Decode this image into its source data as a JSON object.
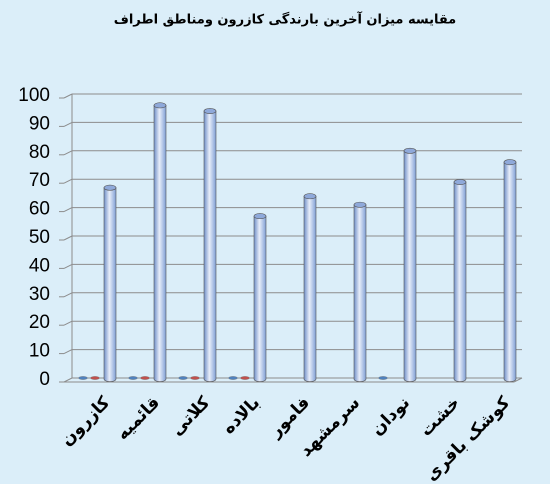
{
  "chart_data": {
    "type": "bar3d",
    "title": "مقایسه میزان آخرین بارندگی کازرون ومناطق اطراف",
    "categories": [
      "کازرون",
      "قائمیه",
      "کلاتی",
      "بالاده",
      "فامور",
      "سرمشهد",
      "نودان",
      "خشت",
      "کوشک باقری"
    ],
    "series": [
      {
        "color": "#4f81bd",
        "values": [
          0,
          0,
          0,
          0,
          null,
          null,
          0,
          null,
          null
        ]
      },
      {
        "color": "#c0504d",
        "values": [
          0,
          0,
          0,
          0,
          null,
          null,
          null,
          null,
          null
        ]
      },
      {
        "color": "#7f9fd6",
        "values": [
          67,
          96,
          94,
          57,
          64,
          61,
          80,
          69,
          76
        ]
      }
    ],
    "ylim": [
      0,
      100
    ],
    "yticks": [
      0,
      10,
      20,
      30,
      40,
      50,
      60,
      70,
      80,
      90,
      100
    ],
    "grid": true
  }
}
